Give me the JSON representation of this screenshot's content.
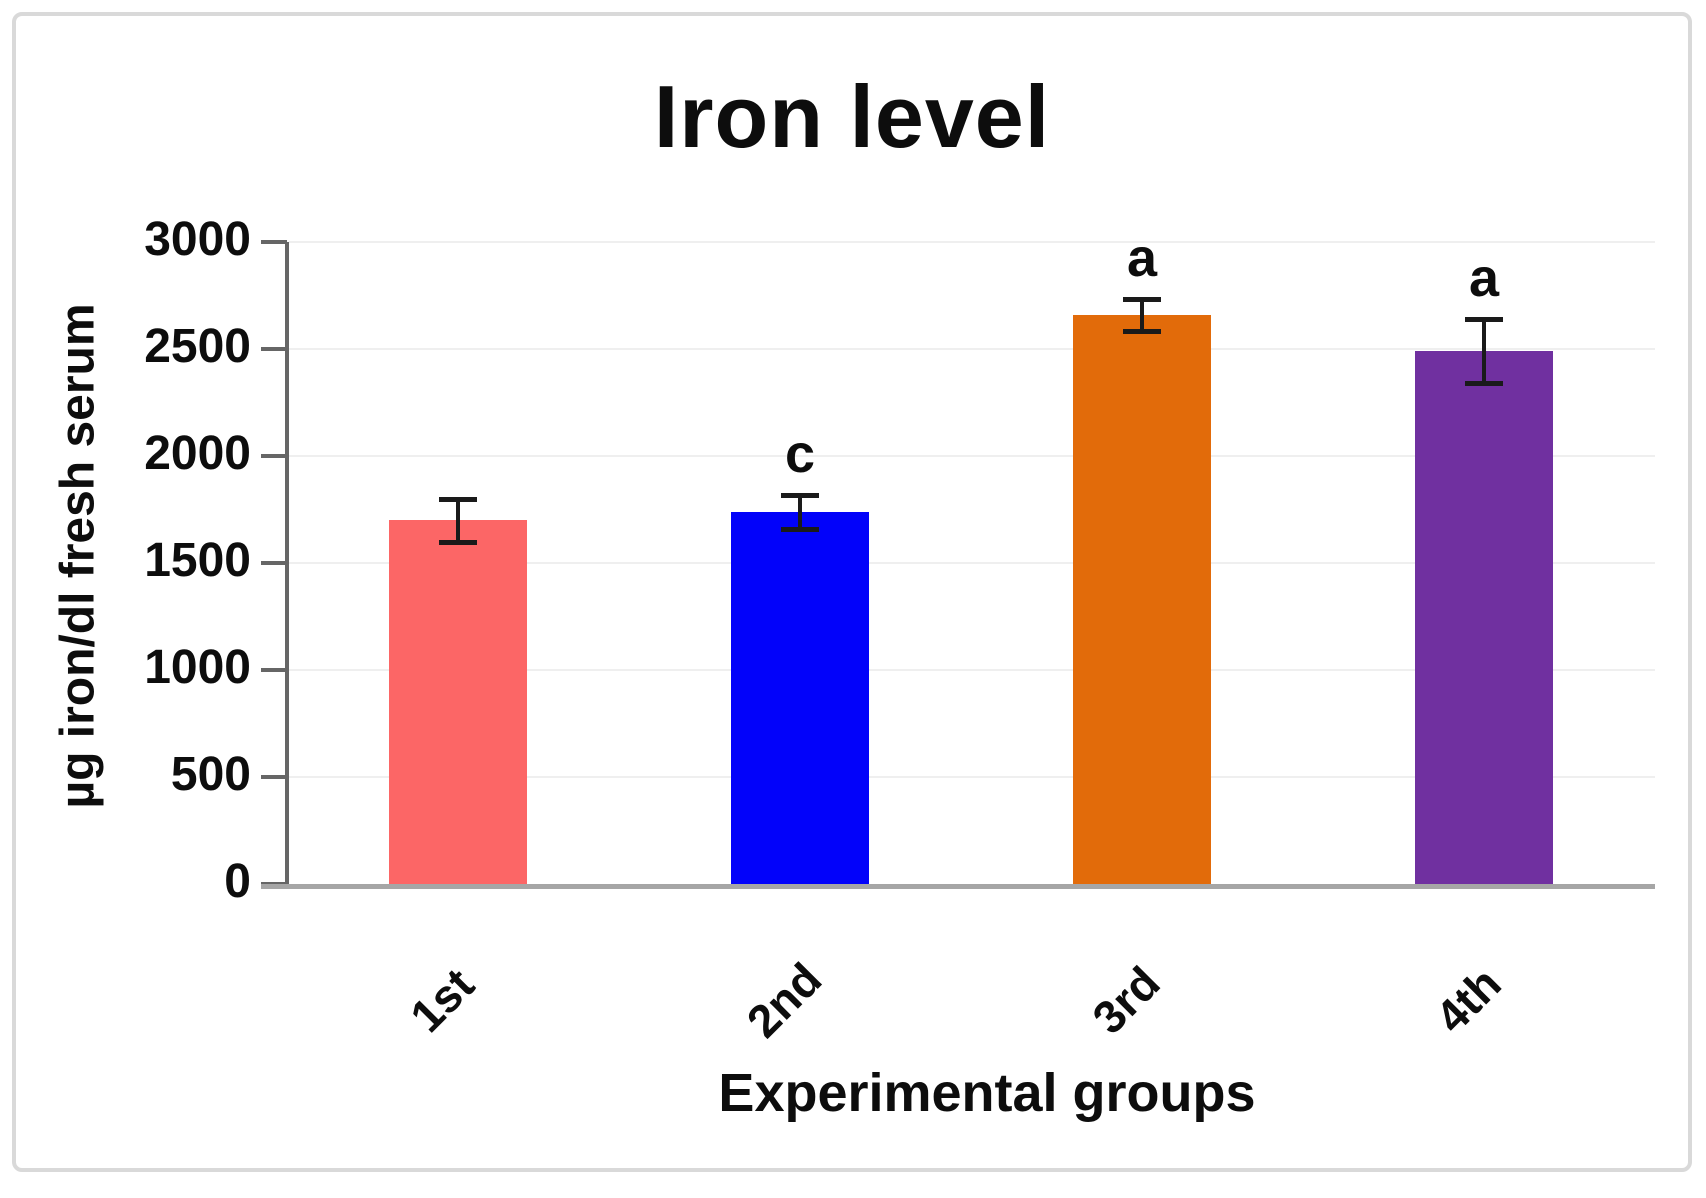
{
  "chart_data": {
    "type": "bar",
    "title": "Iron level",
    "xlabel": "Experimental groups",
    "ylabel": "µg iron/dl fresh serum",
    "categories": [
      "1st",
      "2nd",
      "3rd",
      "4th"
    ],
    "values": [
      1700,
      1740,
      2660,
      2490
    ],
    "error_bars": [
      100,
      80,
      75,
      150
    ],
    "significance_labels": [
      "",
      "c",
      "a",
      "a"
    ],
    "bar_colors": [
      "#FC6666",
      "#0202FA",
      "#E26B0A",
      "#7030A0"
    ],
    "ylim": [
      0,
      3000
    ],
    "ytick_step": 500,
    "yticks": [
      "0",
      "500",
      "1000",
      "1500",
      "2000",
      "2500",
      "3000"
    ],
    "grid": true,
    "legend": "none",
    "colors": {
      "gridline": "#efefef",
      "vertical_axis": "#666666",
      "horizontal_axis": "#a6a6a6",
      "error_bar": "#1a1a1a",
      "text": "#0d0d0d",
      "frame_border": "#d9d9d9",
      "background": "#ffffff"
    }
  }
}
